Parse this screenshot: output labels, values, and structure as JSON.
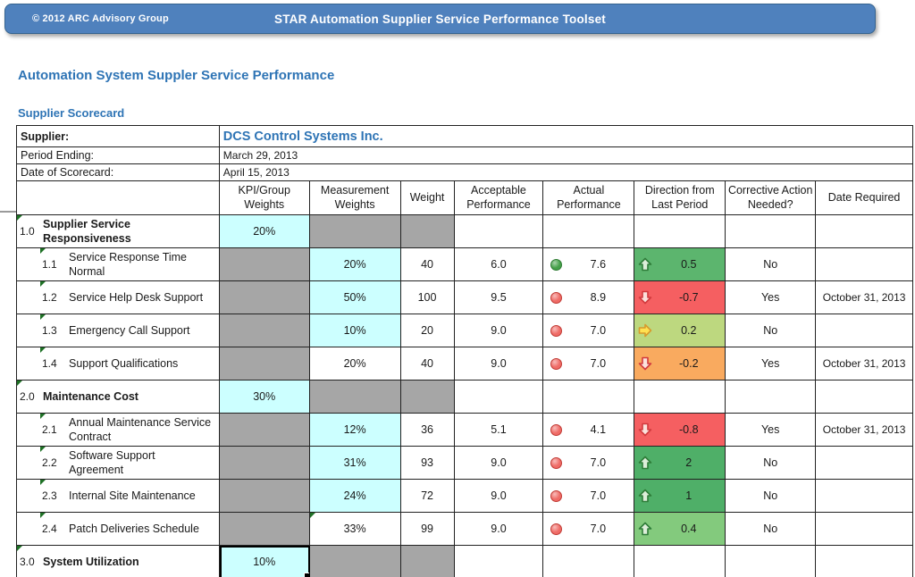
{
  "banner": {
    "copyright": "© 2012  ARC Advisory Group",
    "title": "STAR Automation Supplier Service Performance Toolset",
    "bg": "#4f81bd"
  },
  "page_title": "Automation System Suppler Service Performance",
  "section_title": "Supplier Scorecard",
  "info": {
    "supplier_label": "Supplier:",
    "supplier_value": "DCS Control Systems Inc.",
    "period_label": "Period Ending:",
    "period_value": "March 29, 2013",
    "date_label": "Date of Scorecard:",
    "date_value": "April 15, 2013"
  },
  "columns": [
    "KPI/Group Weights",
    "Measurement Weights",
    "Weight",
    "Acceptable Performance",
    "Actual Performance",
    "Direction from Last Period",
    "Corrective Action Needed?",
    "Date Required"
  ],
  "colors": {
    "accent_blue": "#2e74b5",
    "cell_cyan": "#ccffff",
    "cell_gray": "#a6a6a6",
    "triangle_green": "#1e7125",
    "dot_green": "#45a049",
    "dot_green_border": "#2d7a32",
    "dot_red": "#ef6b66",
    "dot_red_border": "#c03a34",
    "arrow_up_stroke": "#2f7d39",
    "arrow_up_fill": "#ddeeda",
    "arrow_down_stroke": "#d23a3e",
    "arrow_down_fill": "#fbe2dc",
    "arrow_right_stroke": "#d69a2d",
    "arrow_right_fill": "#ffe152"
  },
  "rows": [
    {
      "num": "1.0",
      "label": "Supplier Service Responsiveness",
      "level": 0,
      "tri": true,
      "kpi": "20%",
      "kpi_bg": "cyan",
      "meas_bg": "gray",
      "weight_bg": "gray"
    },
    {
      "num": "1.1",
      "label": "Service Response Time Normal",
      "level": 1,
      "tri": true,
      "kpi_bg": "gray",
      "meas": "20%",
      "meas_bg": "cyan",
      "weight": "40",
      "acceptable": "6.0",
      "dot": "green",
      "actual": "7.6",
      "dir": {
        "arrow": "up",
        "value": "0.5",
        "bg": "#5cb56e"
      },
      "corrective": "No",
      "date": ""
    },
    {
      "num": "1.2",
      "label": "Service Help Desk Support",
      "level": 1,
      "tri": true,
      "kpi_bg": "gray",
      "meas": "50%",
      "meas_bg": "cyan",
      "weight": "100",
      "acceptable": "9.5",
      "dot": "red",
      "actual": "8.9",
      "dir": {
        "arrow": "down",
        "value": "-0.7",
        "bg": "#f55f61"
      },
      "corrective": "Yes",
      "date": "October 31, 2013"
    },
    {
      "num": "1.3",
      "label": "Emergency Call Support",
      "level": 1,
      "tri": true,
      "kpi_bg": "gray",
      "meas": "10%",
      "meas_bg": "cyan",
      "weight": "20",
      "acceptable": "9.0",
      "dot": "red",
      "actual": "7.0",
      "dir": {
        "arrow": "right",
        "value": "0.2",
        "bg": "#bdd87f"
      },
      "corrective": "No",
      "date": ""
    },
    {
      "num": "1.4",
      "label": "Support Qualifications",
      "level": 1,
      "tri": true,
      "kpi_bg": "gray",
      "meas": "20%",
      "weight": "40",
      "acceptable": "9.0",
      "dot": "red",
      "actual": "7.0",
      "dir": {
        "arrow": "down",
        "value": "-0.2",
        "bg": "#f9aa5f"
      },
      "corrective": "Yes",
      "date": "October 31, 2013"
    },
    {
      "num": "2.0",
      "label": "Maintenance Cost",
      "level": 0,
      "tri": true,
      "kpi": "30%",
      "kpi_bg": "cyan",
      "meas_bg": "gray",
      "weight_bg": "gray"
    },
    {
      "num": "2.1",
      "label": "Annual Maintenance Service Contract",
      "level": 1,
      "tri": true,
      "kpi_bg": "gray",
      "meas": "12%",
      "meas_bg": "cyan",
      "weight": "36",
      "acceptable": "5.1",
      "dot": "red",
      "actual": "4.1",
      "dir": {
        "arrow": "down",
        "value": "-0.8",
        "bg": "#f55f61"
      },
      "corrective": "Yes",
      "date": "October 31, 2013"
    },
    {
      "num": "2.2",
      "label": "Software Support Agreement",
      "level": 1,
      "tri": true,
      "kpi_bg": "gray",
      "meas": "31%",
      "meas_bg": "cyan",
      "weight": "93",
      "acceptable": "9.0",
      "dot": "red",
      "actual": "7.0",
      "dir": {
        "arrow": "up",
        "value": "2",
        "bg": "#4faf68"
      },
      "corrective": "No",
      "date": ""
    },
    {
      "num": "2.3",
      "label": "Internal Site Maintenance",
      "level": 1,
      "tri": true,
      "kpi_bg": "gray",
      "meas": "24%",
      "meas_bg": "cyan",
      "weight": "72",
      "acceptable": "9.0",
      "dot": "red",
      "actual": "7.0",
      "dir": {
        "arrow": "up",
        "value": "1",
        "bg": "#4faf68"
      },
      "corrective": "No",
      "date": ""
    },
    {
      "num": "2.4",
      "label": "Patch Deliveries Schedule",
      "level": 1,
      "tri": true,
      "kpi_bg": "gray",
      "meas": "33%",
      "meas_tri": true,
      "weight": "99",
      "acceptable": "9.0",
      "dot": "red",
      "actual": "7.0",
      "dir": {
        "arrow": "up",
        "value": "0.4",
        "bg": "#83ca7d"
      },
      "corrective": "No",
      "date": ""
    },
    {
      "num": "3.0",
      "label": "System Utilization",
      "level": 0,
      "tri": true,
      "kpi": "10%",
      "kpi_bg": "cyan",
      "kpi_selected": true,
      "meas_bg": "gray",
      "weight_bg": "gray"
    }
  ]
}
